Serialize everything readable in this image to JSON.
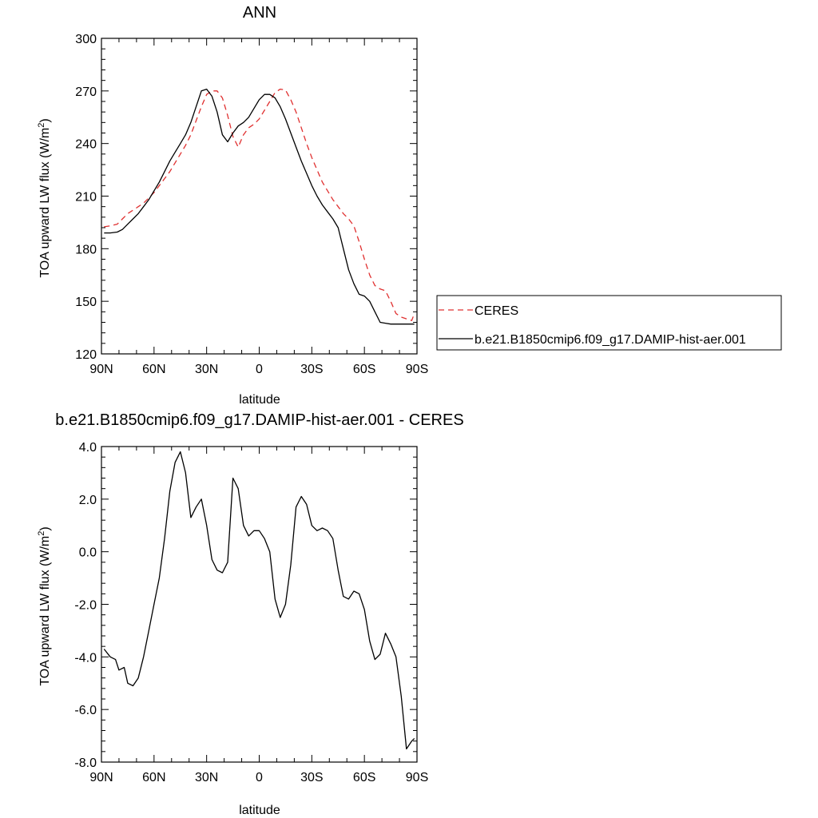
{
  "chart_data": [
    {
      "type": "line",
      "title": "ANN",
      "xlabel": "latitude",
      "ylabel": "TOA upward LW flux (W/m",
      "ylabel_sup": "2",
      "ylabel_close": ")",
      "xlim": [
        90,
        -90
      ],
      "ylim": [
        120,
        300
      ],
      "xticks": [
        90,
        60,
        30,
        0,
        -30,
        -60,
        -90
      ],
      "xtick_labels": [
        "90N",
        "60N",
        "30N",
        "0",
        "30S",
        "60S",
        "90S"
      ],
      "yticks": [
        120,
        150,
        180,
        210,
        240,
        270,
        300
      ],
      "ytick_labels": [
        "120",
        "150",
        "180",
        "210",
        "240",
        "270",
        "300"
      ],
      "legend": "right",
      "series": [
        {
          "name": "CERES",
          "color": "#e03030",
          "dash": "dashed",
          "x": [
            88.5,
            85,
            81,
            78,
            75,
            72,
            69,
            66,
            63,
            60,
            57,
            54,
            51,
            48,
            45,
            42,
            39,
            36,
            33,
            30,
            27,
            24,
            21,
            18,
            15,
            12,
            9,
            6,
            3,
            0,
            -3,
            -6,
            -9,
            -12,
            -15,
            -18,
            -21,
            -24,
            -27,
            -30,
            -33,
            -36,
            -39,
            -42,
            -45,
            -48,
            -51,
            -54,
            -57,
            -60,
            -63,
            -66,
            -69,
            -72,
            -75,
            -78,
            -81,
            -84,
            -87,
            -88.5
          ],
          "y": [
            192.5,
            193,
            194,
            197,
            200,
            202,
            204,
            206,
            209,
            212,
            216,
            220,
            224,
            229,
            234,
            239,
            245,
            253,
            261,
            268,
            270,
            270,
            266,
            256,
            244,
            238,
            245,
            249,
            251,
            254,
            259,
            264,
            269,
            271,
            270.5,
            265,
            258,
            249,
            240,
            232,
            225,
            218,
            213,
            208,
            204,
            200,
            197,
            193,
            184,
            174,
            165,
            159,
            157,
            156,
            150,
            143,
            141,
            140,
            139,
            143
          ]
        },
        {
          "name": "b.e21.B1850cmip6.f09_g17.DAMIP-hist-aer.001",
          "color": "#000000",
          "dash": "solid",
          "x": [
            88.5,
            85,
            81,
            78,
            75,
            72,
            69,
            66,
            63,
            60,
            57,
            54,
            51,
            48,
            45,
            42,
            39,
            36,
            33,
            30,
            27,
            24,
            21,
            18,
            15,
            12,
            9,
            6,
            3,
            0,
            -3,
            -6,
            -9,
            -12,
            -15,
            -18,
            -21,
            -24,
            -27,
            -30,
            -33,
            -36,
            -39,
            -42,
            -45,
            -48,
            -51,
            -54,
            -57,
            -60,
            -63,
            -66,
            -69,
            -72,
            -75,
            -78,
            -81,
            -84,
            -87,
            -88.5
          ],
          "y": [
            189,
            189,
            189.5,
            191,
            194,
            197,
            200,
            204,
            208,
            213,
            218,
            224,
            230,
            235,
            240,
            245,
            252,
            261,
            270,
            271,
            267,
            258,
            245,
            241,
            246,
            250,
            252,
            255,
            260,
            265,
            268,
            268,
            266,
            261,
            254,
            246,
            238,
            230,
            223,
            216,
            210,
            205,
            201,
            197,
            192,
            180,
            168,
            160,
            154,
            153,
            150,
            144,
            138,
            137.5,
            137,
            137,
            137,
            137,
            137,
            137
          ]
        }
      ]
    },
    {
      "type": "line",
      "title": "b.e21.B1850cmip6.f09_g17.DAMIP-hist-aer.001 - CERES",
      "xlabel": "latitude",
      "ylabel": "TOA upward LW flux (W/m",
      "ylabel_sup": "2",
      "ylabel_close": ")",
      "xlim": [
        90,
        -90
      ],
      "ylim": [
        -8.0,
        4.0
      ],
      "xticks": [
        90,
        60,
        30,
        0,
        -30,
        -60,
        -90
      ],
      "xtick_labels": [
        "90N",
        "60N",
        "30N",
        "0",
        "30S",
        "60S",
        "90S"
      ],
      "yticks": [
        -8.0,
        -6.0,
        -4.0,
        -2.0,
        0.0,
        2.0,
        4.0
      ],
      "ytick_labels": [
        "-8.0",
        "-6.0",
        "-4.0",
        "-2.0",
        "0.0",
        "2.0",
        "4.0"
      ],
      "legend": "none",
      "series": [
        {
          "color": "#000000",
          "dash": "solid",
          "x": [
            88.5,
            85,
            82,
            80,
            77,
            75,
            72,
            69,
            66,
            63,
            60,
            57,
            54,
            51,
            48,
            45,
            42,
            39,
            36,
            33,
            30,
            27,
            24,
            21,
            18,
            15,
            12,
            9,
            6,
            3,
            0,
            -3,
            -6,
            -9,
            -12,
            -15,
            -18,
            -21,
            -24,
            -27,
            -30,
            -33,
            -36,
            -39,
            -42,
            -45,
            -48,
            -51,
            -54,
            -57,
            -60,
            -63,
            -66,
            -69,
            -72,
            -75,
            -78,
            -81,
            -84,
            -87,
            -88.5
          ],
          "y": [
            -3.7,
            -4.0,
            -4.1,
            -4.5,
            -4.4,
            -5.0,
            -5.1,
            -4.8,
            -4.0,
            -3.0,
            -2.0,
            -1.0,
            0.5,
            2.3,
            3.4,
            3.8,
            3.0,
            1.3,
            1.7,
            2.0,
            1.0,
            -0.3,
            -0.7,
            -0.8,
            -0.4,
            2.8,
            2.4,
            1.0,
            0.6,
            0.8,
            0.8,
            0.5,
            0.0,
            -1.8,
            -2.5,
            -2.0,
            -0.5,
            1.7,
            2.1,
            1.8,
            1.0,
            0.8,
            0.9,
            0.8,
            0.5,
            -0.7,
            -1.7,
            -1.8,
            -1.5,
            -1.6,
            -2.2,
            -3.4,
            -4.1,
            -3.9,
            -3.1,
            -3.5,
            -4.0,
            -5.5,
            -7.5,
            -7.2,
            -7.1
          ]
        }
      ]
    }
  ]
}
